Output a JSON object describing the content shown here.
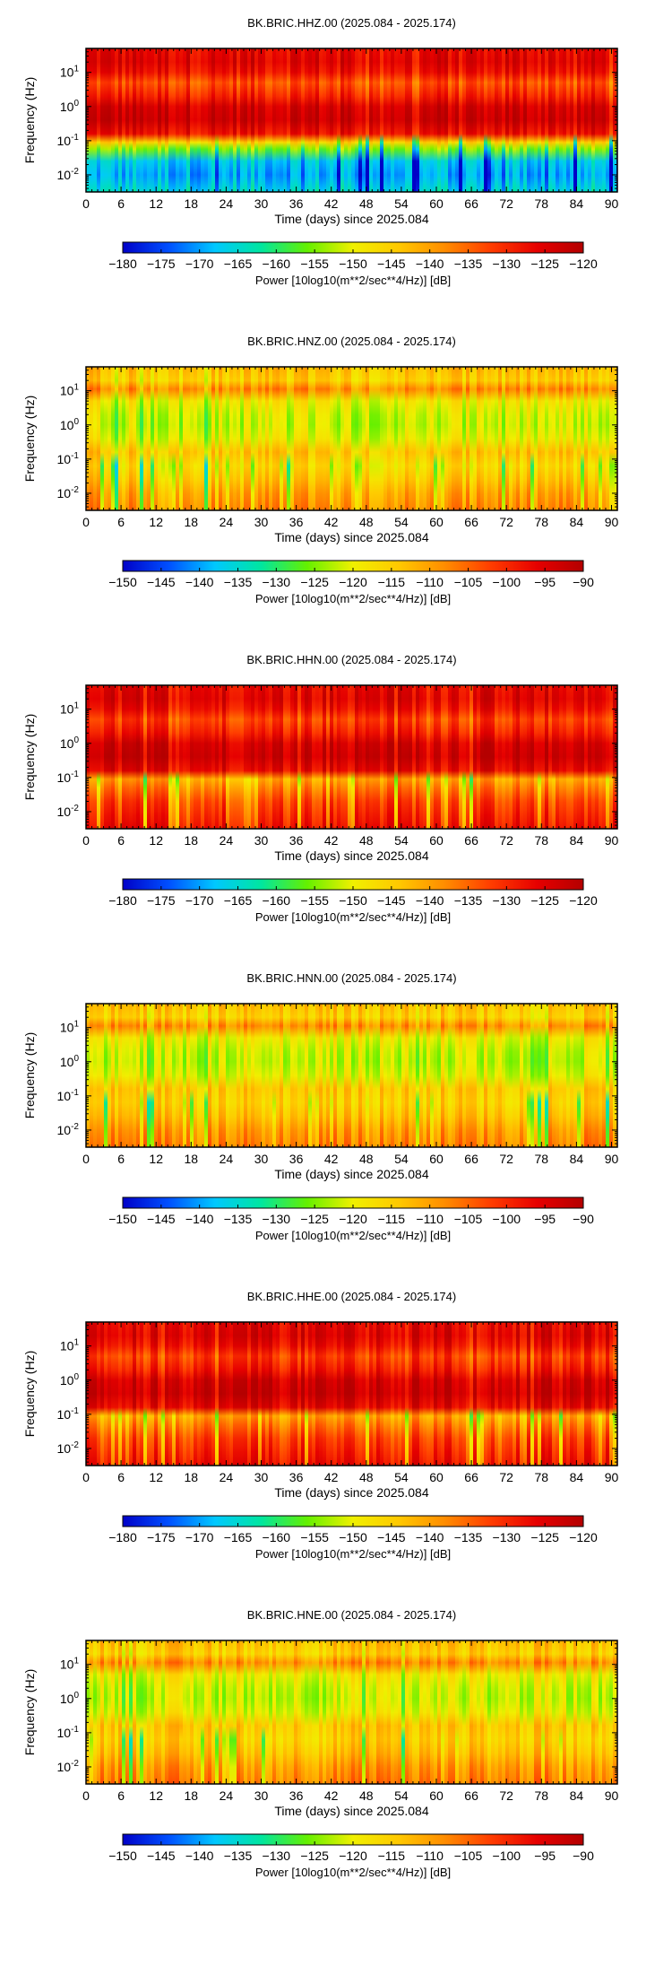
{
  "chart_data": [
    {
      "type": "heatmap",
      "title": "BK.BRIC.HHZ.00 (2025.084 - 2025.174)",
      "xlabel": "Time (days) since 2025.084",
      "ylabel": "Frequency (Hz)",
      "x_ticks": [
        "0",
        "6",
        "12",
        "18",
        "24",
        "30",
        "36",
        "42",
        "48",
        "54",
        "60",
        "66",
        "72",
        "78",
        "84",
        "90"
      ],
      "y_ticks": [
        {
          "base": "10",
          "exp": "1"
        },
        {
          "base": "10",
          "exp": "0"
        },
        {
          "base": "10",
          "exp": "-1"
        },
        {
          "base": "10",
          "exp": "-2"
        }
      ],
      "xlim": [
        0,
        91
      ],
      "ylim_log10": [
        -2.5,
        1.7
      ],
      "colorbar": {
        "label": "Power [10log10(m**2/sec**4/Hz)] [dB]",
        "ticks": [
          "−180",
          "−175",
          "−170",
          "−165",
          "−160",
          "−155",
          "−150",
          "−145",
          "−140",
          "−135",
          "−130",
          "−125",
          "−120"
        ],
        "range": [
          -180,
          -120
        ],
        "colormap": [
          "#0000c8",
          "#0050ff",
          "#00c8ff",
          "#00e6a0",
          "#64f000",
          "#f0f000",
          "#ffc800",
          "#ff8c00",
          "#ff3c00",
          "#e60000",
          "#b40000"
        ]
      },
      "spectrum": [
        {
          "log10_freq": 1.7,
          "level": 0.9
        },
        {
          "log10_freq": 1.3,
          "level": 0.92
        },
        {
          "log10_freq": 1.0,
          "level": 0.88
        },
        {
          "log10_freq": 0.7,
          "level": 0.78
        },
        {
          "log10_freq": 0.3,
          "level": 0.85
        },
        {
          "log10_freq": 0.0,
          "level": 0.94
        },
        {
          "log10_freq": -0.4,
          "level": 0.96
        },
        {
          "log10_freq": -0.8,
          "level": 0.88
        },
        {
          "log10_freq": -1.05,
          "level": 0.58
        },
        {
          "log10_freq": -1.25,
          "level": 0.42
        },
        {
          "log10_freq": -1.6,
          "level": 0.22
        },
        {
          "log10_freq": -2.0,
          "level": 0.18
        },
        {
          "log10_freq": -2.5,
          "level": 0.25
        }
      ]
    },
    {
      "type": "heatmap",
      "title": "BK.BRIC.HNZ.00 (2025.084 - 2025.174)",
      "xlabel": "Time (days) since 2025.084",
      "ylabel": "Frequency (Hz)",
      "x_ticks": [
        "0",
        "6",
        "12",
        "18",
        "24",
        "30",
        "36",
        "42",
        "48",
        "54",
        "60",
        "66",
        "72",
        "78",
        "84",
        "90"
      ],
      "y_ticks": [
        {
          "base": "10",
          "exp": "1"
        },
        {
          "base": "10",
          "exp": "0"
        },
        {
          "base": "10",
          "exp": "-1"
        },
        {
          "base": "10",
          "exp": "-2"
        }
      ],
      "xlim": [
        0,
        91
      ],
      "ylim_log10": [
        -2.5,
        1.7
      ],
      "colorbar": {
        "label": "Power [10log10(m**2/sec**4/Hz)] [dB]",
        "ticks": [
          "−150",
          "−145",
          "−140",
          "−135",
          "−130",
          "−125",
          "−120",
          "−115",
          "−110",
          "−105",
          "−100",
          "−95",
          "−90"
        ],
        "range": [
          -150,
          -90
        ],
        "colormap": [
          "#0000c8",
          "#0050ff",
          "#00c8ff",
          "#00e6a0",
          "#64f000",
          "#f0f000",
          "#ffc800",
          "#ff8c00",
          "#ff3c00",
          "#e60000",
          "#b40000"
        ]
      },
      "spectrum": [
        {
          "log10_freq": 1.7,
          "level": 0.62
        },
        {
          "log10_freq": 1.3,
          "level": 0.58
        },
        {
          "log10_freq": 1.05,
          "level": 0.7
        },
        {
          "log10_freq": 0.7,
          "level": 0.52
        },
        {
          "log10_freq": 0.3,
          "level": 0.48
        },
        {
          "log10_freq": 0.0,
          "level": 0.47
        },
        {
          "log10_freq": -0.4,
          "level": 0.5
        },
        {
          "log10_freq": -0.8,
          "level": 0.6
        },
        {
          "log10_freq": -1.2,
          "level": 0.55
        },
        {
          "log10_freq": -1.6,
          "level": 0.6
        },
        {
          "log10_freq": -2.0,
          "level": 0.66
        },
        {
          "log10_freq": -2.5,
          "level": 0.7
        }
      ]
    },
    {
      "type": "heatmap",
      "title": "BK.BRIC.HHN.00 (2025.084 - 2025.174)",
      "xlabel": "Time (days) since 2025.084",
      "ylabel": "Frequency (Hz)",
      "x_ticks": [
        "0",
        "6",
        "12",
        "18",
        "24",
        "30",
        "36",
        "42",
        "48",
        "54",
        "60",
        "66",
        "72",
        "78",
        "84",
        "90"
      ],
      "y_ticks": [
        {
          "base": "10",
          "exp": "1"
        },
        {
          "base": "10",
          "exp": "0"
        },
        {
          "base": "10",
          "exp": "-1"
        },
        {
          "base": "10",
          "exp": "-2"
        }
      ],
      "xlim": [
        0,
        91
      ],
      "ylim_log10": [
        -2.5,
        1.7
      ],
      "colorbar": {
        "label": "Power [10log10(m**2/sec**4/Hz)] [dB]",
        "ticks": [
          "−180",
          "−175",
          "−170",
          "−165",
          "−160",
          "−155",
          "−150",
          "−145",
          "−140",
          "−135",
          "−130",
          "−125",
          "−120"
        ],
        "range": [
          -180,
          -120
        ],
        "colormap": [
          "#0000c8",
          "#0050ff",
          "#00c8ff",
          "#00e6a0",
          "#64f000",
          "#f0f000",
          "#ffc800",
          "#ff8c00",
          "#ff3c00",
          "#e60000",
          "#b40000"
        ]
      },
      "spectrum": [
        {
          "log10_freq": 1.7,
          "level": 0.9
        },
        {
          "log10_freq": 1.3,
          "level": 0.92
        },
        {
          "log10_freq": 1.0,
          "level": 0.88
        },
        {
          "log10_freq": 0.7,
          "level": 0.8
        },
        {
          "log10_freq": 0.3,
          "level": 0.86
        },
        {
          "log10_freq": 0.0,
          "level": 0.94
        },
        {
          "log10_freq": -0.4,
          "level": 0.96
        },
        {
          "log10_freq": -0.8,
          "level": 0.9
        },
        {
          "log10_freq": -1.05,
          "level": 0.66
        },
        {
          "log10_freq": -1.3,
          "level": 0.72
        },
        {
          "log10_freq": -1.7,
          "level": 0.8
        },
        {
          "log10_freq": -2.1,
          "level": 0.84
        },
        {
          "log10_freq": -2.5,
          "level": 0.88
        }
      ]
    },
    {
      "type": "heatmap",
      "title": "BK.BRIC.HNN.00 (2025.084 - 2025.174)",
      "xlabel": "Time (days) since 2025.084",
      "ylabel": "Frequency (Hz)",
      "x_ticks": [
        "0",
        "6",
        "12",
        "18",
        "24",
        "30",
        "36",
        "42",
        "48",
        "54",
        "60",
        "66",
        "72",
        "78",
        "84",
        "90"
      ],
      "y_ticks": [
        {
          "base": "10",
          "exp": "1"
        },
        {
          "base": "10",
          "exp": "0"
        },
        {
          "base": "10",
          "exp": "-1"
        },
        {
          "base": "10",
          "exp": "-2"
        }
      ],
      "xlim": [
        0,
        91
      ],
      "ylim_log10": [
        -2.5,
        1.7
      ],
      "colorbar": {
        "label": "Power [10log10(m**2/sec**4/Hz)] [dB]",
        "ticks": [
          "−150",
          "−145",
          "−140",
          "−135",
          "−130",
          "−125",
          "−120",
          "−115",
          "−110",
          "−105",
          "−100",
          "−95",
          "−90"
        ],
        "range": [
          -150,
          -90
        ],
        "colormap": [
          "#0000c8",
          "#0050ff",
          "#00c8ff",
          "#00e6a0",
          "#64f000",
          "#f0f000",
          "#ffc800",
          "#ff8c00",
          "#ff3c00",
          "#e60000",
          "#b40000"
        ]
      },
      "spectrum": [
        {
          "log10_freq": 1.7,
          "level": 0.62
        },
        {
          "log10_freq": 1.3,
          "level": 0.58
        },
        {
          "log10_freq": 1.05,
          "level": 0.7
        },
        {
          "log10_freq": 0.7,
          "level": 0.52
        },
        {
          "log10_freq": 0.3,
          "level": 0.48
        },
        {
          "log10_freq": 0.0,
          "level": 0.47
        },
        {
          "log10_freq": -0.4,
          "level": 0.5
        },
        {
          "log10_freq": -0.8,
          "level": 0.6
        },
        {
          "log10_freq": -1.2,
          "level": 0.58
        },
        {
          "log10_freq": -1.6,
          "level": 0.62
        },
        {
          "log10_freq": -2.0,
          "level": 0.68
        },
        {
          "log10_freq": -2.5,
          "level": 0.72
        }
      ]
    },
    {
      "type": "heatmap",
      "title": "BK.BRIC.HHE.00 (2025.084 - 2025.174)",
      "xlabel": "Time (days) since 2025.084",
      "ylabel": "Frequency (Hz)",
      "x_ticks": [
        "0",
        "6",
        "12",
        "18",
        "24",
        "30",
        "36",
        "42",
        "48",
        "54",
        "60",
        "66",
        "72",
        "78",
        "84",
        "90"
      ],
      "y_ticks": [
        {
          "base": "10",
          "exp": "1"
        },
        {
          "base": "10",
          "exp": "0"
        },
        {
          "base": "10",
          "exp": "-1"
        },
        {
          "base": "10",
          "exp": "-2"
        }
      ],
      "xlim": [
        0,
        91
      ],
      "ylim_log10": [
        -2.5,
        1.7
      ],
      "colorbar": {
        "label": "Power [10log10(m**2/sec**4/Hz)] [dB]",
        "ticks": [
          "−180",
          "−175",
          "−170",
          "−165",
          "−160",
          "−155",
          "−150",
          "−145",
          "−140",
          "−135",
          "−130",
          "−125",
          "−120"
        ],
        "range": [
          -180,
          -120
        ],
        "colormap": [
          "#0000c8",
          "#0050ff",
          "#00c8ff",
          "#00e6a0",
          "#64f000",
          "#f0f000",
          "#ffc800",
          "#ff8c00",
          "#ff3c00",
          "#e60000",
          "#b40000"
        ]
      },
      "spectrum": [
        {
          "log10_freq": 1.7,
          "level": 0.9
        },
        {
          "log10_freq": 1.3,
          "level": 0.92
        },
        {
          "log10_freq": 1.0,
          "level": 0.88
        },
        {
          "log10_freq": 0.7,
          "level": 0.8
        },
        {
          "log10_freq": 0.3,
          "level": 0.86
        },
        {
          "log10_freq": 0.0,
          "level": 0.94
        },
        {
          "log10_freq": -0.4,
          "level": 0.96
        },
        {
          "log10_freq": -0.8,
          "level": 0.9
        },
        {
          "log10_freq": -1.05,
          "level": 0.66
        },
        {
          "log10_freq": -1.3,
          "level": 0.72
        },
        {
          "log10_freq": -1.7,
          "level": 0.8
        },
        {
          "log10_freq": -2.1,
          "level": 0.84
        },
        {
          "log10_freq": -2.5,
          "level": 0.88
        }
      ]
    },
    {
      "type": "heatmap",
      "title": "BK.BRIC.HNE.00 (2025.084 - 2025.174)",
      "xlabel": "Time (days) since 2025.084",
      "ylabel": "Frequency (Hz)",
      "x_ticks": [
        "0",
        "6",
        "12",
        "18",
        "24",
        "30",
        "36",
        "42",
        "48",
        "54",
        "60",
        "66",
        "72",
        "78",
        "84",
        "90"
      ],
      "y_ticks": [
        {
          "base": "10",
          "exp": "1"
        },
        {
          "base": "10",
          "exp": "0"
        },
        {
          "base": "10",
          "exp": "-1"
        },
        {
          "base": "10",
          "exp": "-2"
        }
      ],
      "xlim": [
        0,
        91
      ],
      "ylim_log10": [
        -2.5,
        1.7
      ],
      "colorbar": {
        "label": "Power [10log10(m**2/sec**4/Hz)] [dB]",
        "ticks": [
          "−150",
          "−145",
          "−140",
          "−135",
          "−130",
          "−125",
          "−120",
          "−115",
          "−110",
          "−105",
          "−100",
          "−95",
          "−90"
        ],
        "range": [
          -150,
          -90
        ],
        "colormap": [
          "#0000c8",
          "#0050ff",
          "#00c8ff",
          "#00e6a0",
          "#64f000",
          "#f0f000",
          "#ffc800",
          "#ff8c00",
          "#ff3c00",
          "#e60000",
          "#b40000"
        ]
      },
      "spectrum": [
        {
          "log10_freq": 1.7,
          "level": 0.62
        },
        {
          "log10_freq": 1.3,
          "level": 0.58
        },
        {
          "log10_freq": 1.05,
          "level": 0.7
        },
        {
          "log10_freq": 0.7,
          "level": 0.52
        },
        {
          "log10_freq": 0.3,
          "level": 0.48
        },
        {
          "log10_freq": 0.0,
          "level": 0.47
        },
        {
          "log10_freq": -0.4,
          "level": 0.5
        },
        {
          "log10_freq": -0.8,
          "level": 0.6
        },
        {
          "log10_freq": -1.2,
          "level": 0.58
        },
        {
          "log10_freq": -1.6,
          "level": 0.62
        },
        {
          "log10_freq": -2.0,
          "level": 0.68
        },
        {
          "log10_freq": -2.5,
          "level": 0.72
        }
      ]
    }
  ]
}
